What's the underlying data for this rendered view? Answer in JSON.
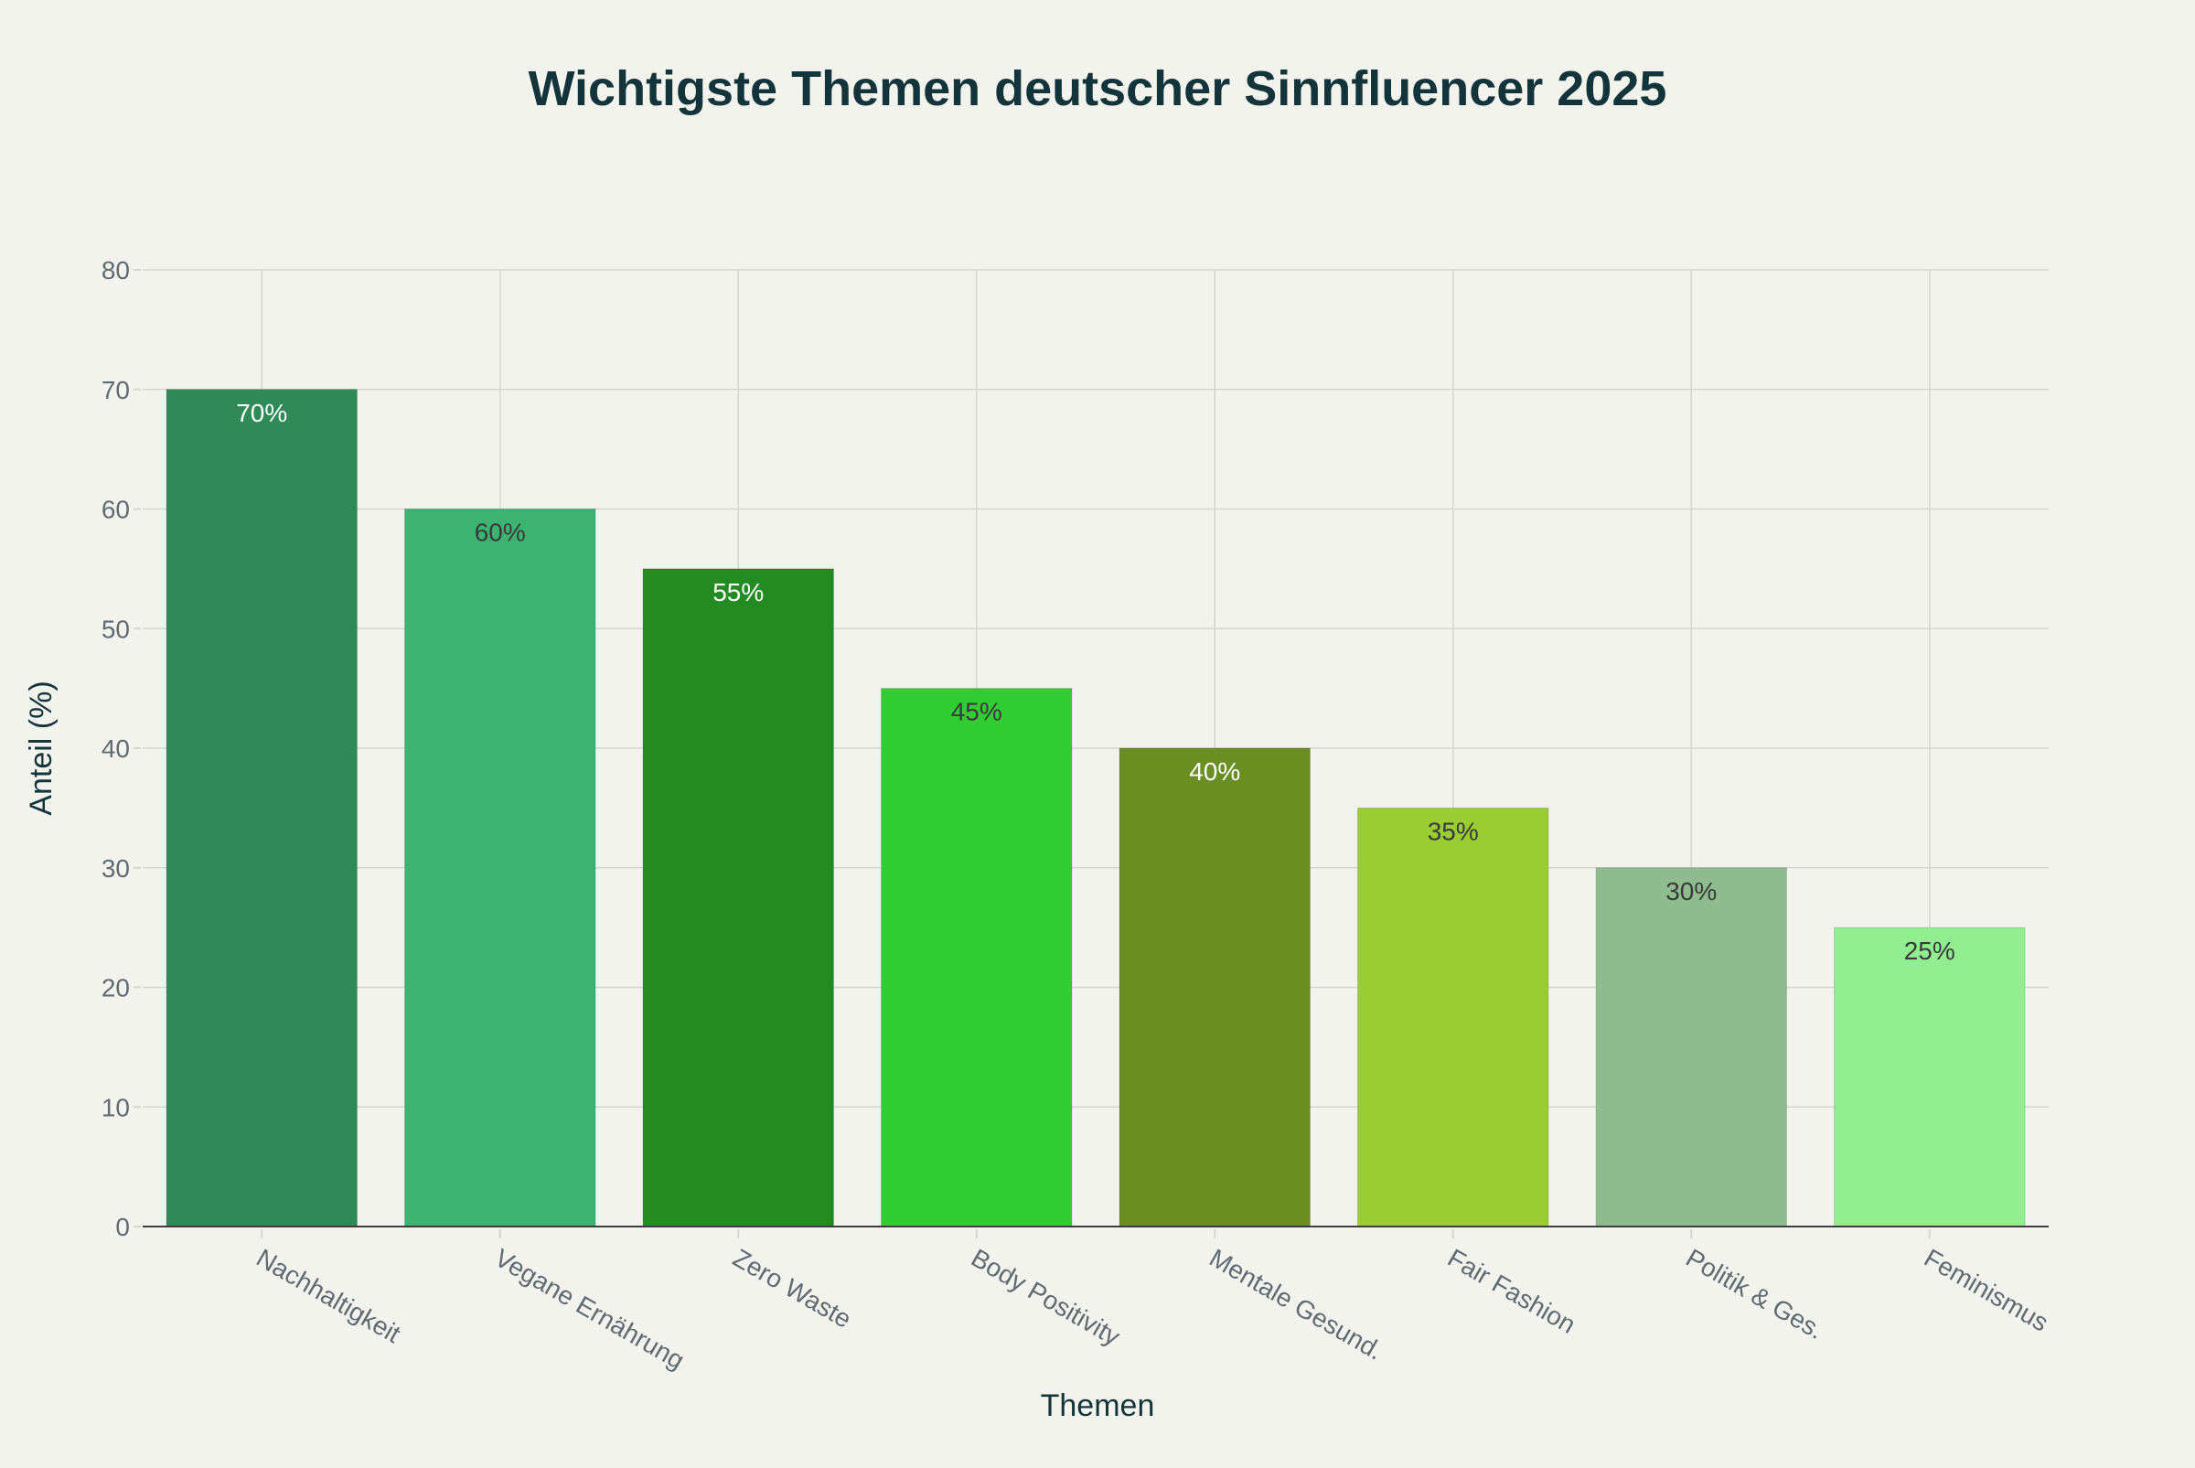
{
  "chart_data": {
    "type": "bar",
    "title": "Wichtigste Themen deutscher Sinnfluencer 2025",
    "xlabel": "Themen",
    "ylabel": "Anteil (%)",
    "ylim": [
      0,
      80
    ],
    "yticks": [
      0,
      10,
      20,
      30,
      40,
      50,
      60,
      70,
      80
    ],
    "grid": true,
    "categories": [
      "Nachhaltigkeit",
      "Vegane Ernährung",
      "Zero Waste",
      "Body Positivity",
      "Mentale Gesund.",
      "Fair Fashion",
      "Politik & Ges.",
      "Feminismus"
    ],
    "values": [
      70,
      60,
      55,
      45,
      40,
      35,
      30,
      25
    ],
    "data_labels": [
      "70%",
      "60%",
      "55%",
      "45%",
      "40%",
      "35%",
      "30%",
      "25%"
    ],
    "colors": [
      "#2e8b57",
      "#3cb371",
      "#228b22",
      "#32cd32",
      "#6b8e23",
      "#9acd32",
      "#8fbc8f",
      "#90ee90"
    ],
    "label_colors": [
      "#ffffff",
      "#3a3a3a",
      "#ffffff",
      "#3a3a3a",
      "#ffffff",
      "#3a3a3a",
      "#3a3a3a",
      "#3a3a3a"
    ]
  }
}
